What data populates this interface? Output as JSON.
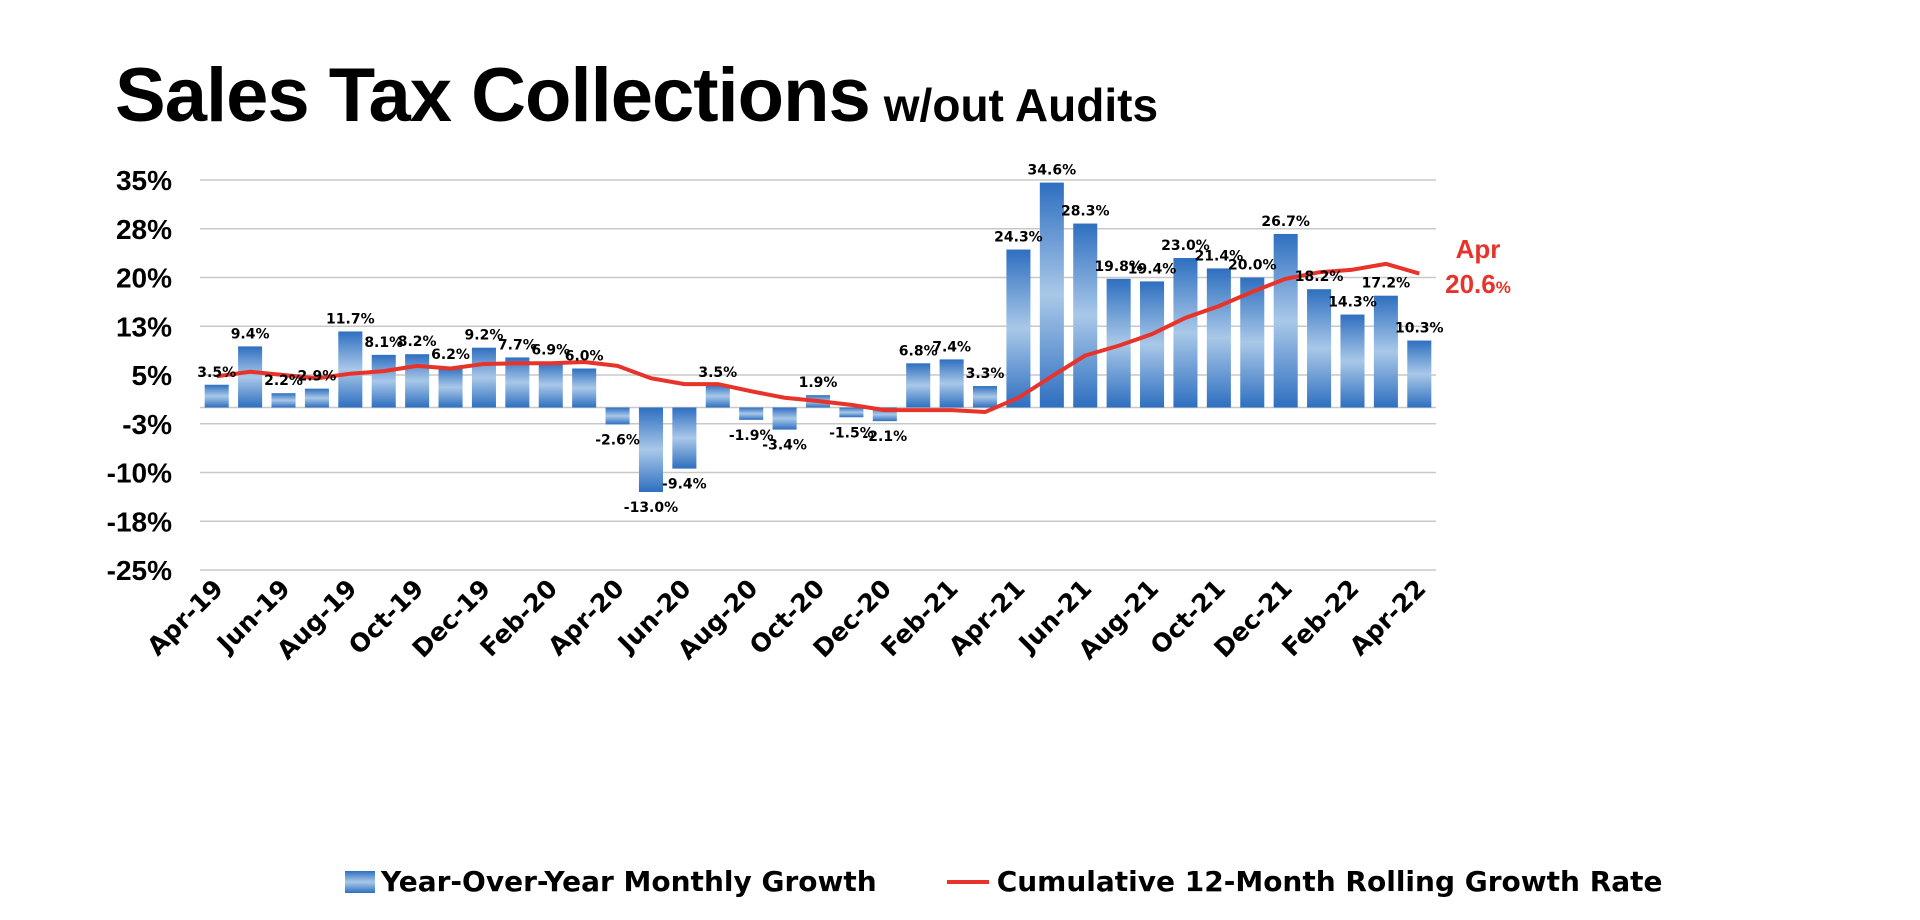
{
  "chart_data": {
    "type": "bar",
    "title": "Sales Tax Collections",
    "subtitle": "w/out Audits",
    "xlabel": "",
    "ylabel": "",
    "ylim": [
      -25,
      35
    ],
    "y_tick_values": [
      35,
      27.5,
      20,
      12.5,
      5,
      -2.5,
      -10,
      -17.5,
      -25
    ],
    "y_tick_labels": [
      "35%",
      "28%",
      "20%",
      "13%",
      "5%",
      "-3%",
      "-10%",
      "-18%",
      "-25%"
    ],
    "grid": true,
    "legend_position": "bottom",
    "categories": [
      "Apr-19",
      "May-19",
      "Jun-19",
      "Jul-19",
      "Aug-19",
      "Sep-19",
      "Oct-19",
      "Nov-19",
      "Dec-19",
      "Jan-20",
      "Feb-20",
      "Mar-20",
      "Apr-20",
      "May-20",
      "Jun-20",
      "Jul-20",
      "Aug-20",
      "Sep-20",
      "Oct-20",
      "Nov-20",
      "Dec-20",
      "Jan-21",
      "Feb-21",
      "Mar-21",
      "Apr-21",
      "May-21",
      "Jun-21",
      "Jul-21",
      "Aug-21",
      "Sep-21",
      "Oct-21",
      "Nov-21",
      "Dec-21",
      "Jan-22",
      "Feb-22",
      "Mar-22",
      "Apr-22"
    ],
    "x_tick_labels_shown": [
      "Apr-19",
      "Jun-19",
      "Aug-19",
      "Oct-19",
      "Dec-19",
      "Feb-20",
      "Apr-20",
      "Jun-20",
      "Aug-20",
      "Oct-20",
      "Dec-20",
      "Feb-21",
      "Apr-21",
      "Jun-21",
      "Aug-21",
      "Oct-21",
      "Dec-21",
      "Feb-22",
      "Apr-22"
    ],
    "series": [
      {
        "name": "Year-Over-Year Monthly Growth",
        "type": "bar",
        "color": "#2e6fc0",
        "values": [
          3.5,
          9.4,
          2.2,
          2.9,
          11.7,
          8.1,
          8.2,
          6.2,
          9.2,
          7.7,
          6.9,
          6.0,
          -2.6,
          -13.0,
          -9.4,
          3.5,
          -1.9,
          -3.4,
          1.9,
          -1.5,
          -2.1,
          6.8,
          7.4,
          3.3,
          24.3,
          34.6,
          28.3,
          19.8,
          19.4,
          23.0,
          21.4,
          20.0,
          26.7,
          18.2,
          14.3,
          17.2,
          10.3
        ],
        "data_labels": [
          "3.5%",
          "9.4%",
          "2.2%",
          "2.9%",
          "11.7%",
          "8.1%",
          "8.2%",
          "6.2%",
          "9.2%",
          "7.7%",
          "6.9%",
          "6.0%",
          "-2.6%",
          "-13.0%",
          "-9.4%",
          "3.5%",
          "-1.9%",
          "-3.4%",
          "1.9%",
          "-1.5%",
          "-2.1%",
          "6.8%",
          "7.4%",
          "3.3%",
          "24.3%",
          "34.6%",
          "28.3%",
          "19.8%",
          "19.4%",
          "23.0%",
          "21.4%",
          "20.0%",
          "26.7%",
          "18.2%",
          "14.3%",
          "17.2%",
          "10.3%"
        ]
      },
      {
        "name": "Cumulative 12-Month Rolling Growth Rate",
        "type": "line",
        "color": "#e8332a",
        "values": [
          4.8,
          5.5,
          5.0,
          4.5,
          5.2,
          5.6,
          6.4,
          6.0,
          6.7,
          6.8,
          6.8,
          7.0,
          6.4,
          4.5,
          3.6,
          3.6,
          2.5,
          1.5,
          1.0,
          0.4,
          -0.4,
          -0.4,
          -0.4,
          -0.7,
          1.5,
          4.8,
          8.0,
          9.5,
          11.3,
          13.8,
          15.6,
          17.8,
          19.8,
          20.8,
          21.2,
          22.1,
          20.6
        ]
      }
    ],
    "annotation": {
      "month": "Apr",
      "value": "20.6",
      "unit": "%"
    }
  }
}
